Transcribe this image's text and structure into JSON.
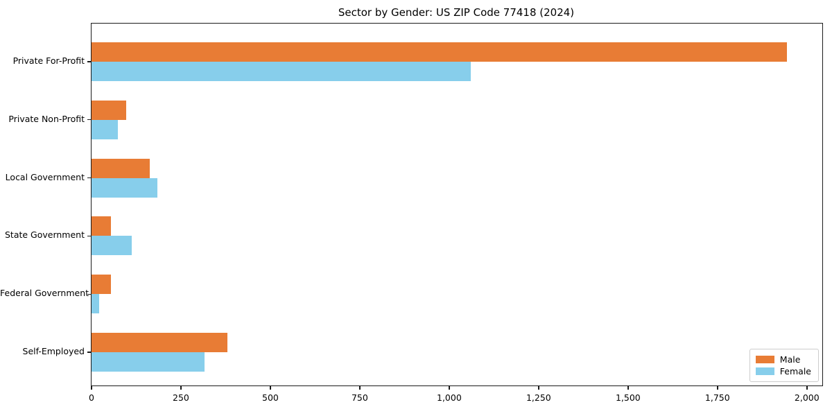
{
  "title": "Sector by Gender: US ZIP Code 77418 (2024)",
  "colors": {
    "male": "#e87c35",
    "female": "#87ceeb",
    "spine": "#1a1a1a",
    "legend_border": "#cccccc",
    "background": "#ffffff"
  },
  "chart_data": {
    "type": "bar",
    "orientation": "horizontal",
    "title": "Sector by Gender: US ZIP Code 77418 (2024)",
    "categories": [
      "Private For-Profit",
      "Private Non-Profit",
      "Local Government",
      "State Government",
      "Federal Government",
      "Self-Employed"
    ],
    "series": [
      {
        "name": "Male",
        "color": "#e87c35",
        "values": [
          1945,
          97,
          163,
          54,
          54,
          380
        ]
      },
      {
        "name": "Female",
        "color": "#87ceeb",
        "values": [
          1060,
          74,
          184,
          112,
          21,
          316
        ]
      }
    ],
    "xlabel": "",
    "ylabel": "",
    "xlim": [
      0,
      2043
    ],
    "xticks": [
      0,
      250,
      500,
      750,
      1000,
      1250,
      1500,
      1750,
      2000
    ],
    "xtick_labels": [
      "0",
      "250",
      "500",
      "750",
      "1,000",
      "1,250",
      "1,500",
      "1,750",
      "2,000"
    ],
    "legend": {
      "position": "lower right",
      "entries": [
        "Male",
        "Female"
      ]
    },
    "grid": false
  }
}
